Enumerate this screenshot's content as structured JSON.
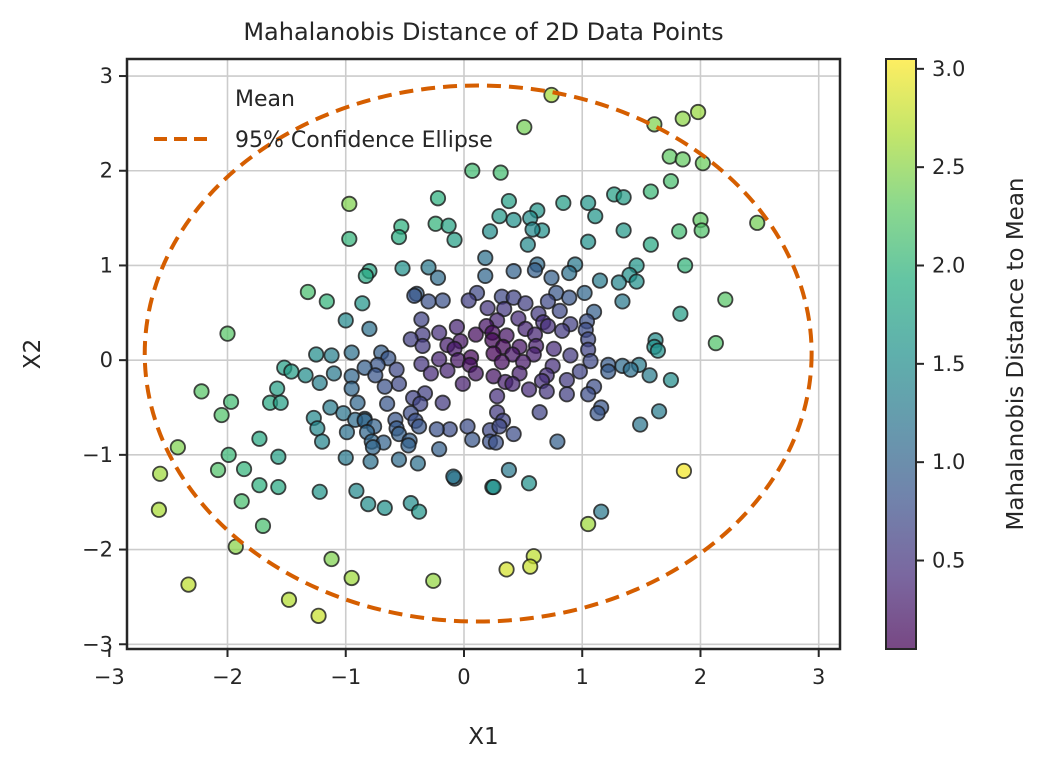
{
  "chart_data": {
    "type": "scatter",
    "title": "Mahalanobis Distance of 2D Data Points",
    "xlabel": "X1",
    "ylabel": "X2",
    "xlim": [
      -2.85,
      3.18
    ],
    "ylim": [
      -3.05,
      3.18
    ],
    "xticks": [
      -3,
      -2,
      -1,
      0,
      1,
      2,
      3
    ],
    "yticks": [
      -3,
      -2,
      -1,
      0,
      1,
      2,
      3
    ],
    "grid": true,
    "legend": {
      "position": "top-left",
      "entries": [
        {
          "label": "Mean",
          "style": "none"
        },
        {
          "label": "95% Confidence Ellipse",
          "style": "dashed-line",
          "color": "#d55e00"
        }
      ]
    },
    "ellipse": {
      "center": [
        0.12,
        0.07
      ],
      "semi_x": 2.82,
      "semi_y": 2.83,
      "color": "#d55e00",
      "style": "dashed"
    },
    "colorbar": {
      "label": "Mahalanobis Distance to Mean",
      "colormap": "viridis",
      "range": [
        0.05,
        3.05
      ],
      "ticks": [
        0.5,
        1.0,
        1.5,
        2.0,
        2.5,
        3.0
      ],
      "tick_labels": [
        "0.5",
        "1.0",
        "1.5",
        "2.0",
        "2.5",
        "3.0"
      ]
    },
    "points": [
      [
        0.74,
        2.8,
        2.62
      ],
      [
        1.98,
        2.62,
        2.57
      ],
      [
        1.85,
        2.55,
        2.52
      ],
      [
        1.61,
        2.49,
        2.45
      ],
      [
        0.51,
        2.46,
        2.4
      ],
      [
        1.74,
        2.15,
        2.3
      ],
      [
        1.85,
        2.12,
        2.32
      ],
      [
        2.02,
        2.08,
        2.35
      ],
      [
        0.07,
        2.0,
        2.1
      ],
      [
        0.31,
        1.98,
        2.12
      ],
      [
        1.75,
        1.89,
        2.15
      ],
      [
        1.58,
        1.78,
        2.05
      ],
      [
        -0.22,
        1.71,
        1.95
      ],
      [
        -0.97,
        1.65,
        2.45
      ],
      [
        1.27,
        1.75,
        1.75
      ],
      [
        1.35,
        1.72,
        1.7
      ],
      [
        0.38,
        1.68,
        1.75
      ],
      [
        0.84,
        1.66,
        1.7
      ],
      [
        1.05,
        1.66,
        1.6
      ],
      [
        0.62,
        1.58,
        1.6
      ],
      [
        0.3,
        1.52,
        1.65
      ],
      [
        0.42,
        1.48,
        1.55
      ],
      [
        0.56,
        1.5,
        1.5
      ],
      [
        1.11,
        1.52,
        1.6
      ],
      [
        2.0,
        1.48,
        2.3
      ],
      [
        -0.24,
        1.44,
        2.0
      ],
      [
        -0.53,
        1.41,
        1.95
      ],
      [
        -0.13,
        1.42,
        1.8
      ],
      [
        2.48,
        1.45,
        2.4
      ],
      [
        0.66,
        1.37,
        1.55
      ],
      [
        -0.55,
        1.3,
        1.9
      ],
      [
        -0.08,
        1.27,
        1.75
      ],
      [
        0.22,
        1.36,
        1.5
      ],
      [
        0.58,
        1.38,
        1.45
      ],
      [
        1.35,
        1.37,
        1.65
      ],
      [
        1.82,
        1.36,
        2.1
      ],
      [
        2.01,
        1.37,
        2.2
      ],
      [
        -0.97,
        1.28,
        2.0
      ],
      [
        0.54,
        1.22,
        1.45
      ],
      [
        1.05,
        1.25,
        1.55
      ],
      [
        1.58,
        1.22,
        1.85
      ],
      [
        0.18,
        1.08,
        1.15
      ],
      [
        0.62,
        1.01,
        1.1
      ],
      [
        0.94,
        1.01,
        1.25
      ],
      [
        -0.8,
        0.94,
        1.8
      ],
      [
        -0.52,
        0.97,
        1.55
      ],
      [
        -0.3,
        0.98,
        1.25
      ],
      [
        1.87,
        1.0,
        2.0
      ],
      [
        -0.83,
        0.89,
        1.85
      ],
      [
        0.18,
        0.89,
        1.05
      ],
      [
        0.42,
        0.94,
        1.0
      ],
      [
        0.6,
        0.95,
        0.95
      ],
      [
        0.89,
        0.92,
        1.15
      ],
      [
        1.46,
        1.0,
        1.6
      ],
      [
        1.4,
        0.9,
        1.55
      ],
      [
        -0.22,
        0.87,
        1.1
      ],
      [
        0.74,
        0.87,
        0.95
      ],
      [
        1.15,
        0.84,
        1.3
      ],
      [
        1.31,
        0.82,
        1.4
      ],
      [
        1.46,
        0.83,
        1.55
      ],
      [
        -1.32,
        0.72,
        2.15
      ],
      [
        0.11,
        0.71,
        0.7
      ],
      [
        0.32,
        0.67,
        0.7
      ],
      [
        0.78,
        0.71,
        0.85
      ],
      [
        1.02,
        0.71,
        1.05
      ],
      [
        -0.4,
        0.7,
        0.95
      ],
      [
        -0.18,
        0.63,
        0.8
      ],
      [
        -0.3,
        0.62,
        0.8
      ],
      [
        -0.42,
        0.68,
        0.85
      ],
      [
        0.04,
        0.63,
        0.6
      ],
      [
        0.42,
        0.66,
        0.65
      ],
      [
        0.52,
        0.6,
        0.6
      ],
      [
        0.71,
        0.62,
        0.7
      ],
      [
        0.89,
        0.66,
        0.85
      ],
      [
        1.34,
        0.62,
        1.25
      ],
      [
        -1.16,
        0.62,
        2.0
      ],
      [
        -0.86,
        0.6,
        1.6
      ],
      [
        2.21,
        0.64,
        2.25
      ],
      [
        0.2,
        0.55,
        0.5
      ],
      [
        0.34,
        0.54,
        0.52
      ],
      [
        0.63,
        0.49,
        0.55
      ],
      [
        0.81,
        0.52,
        0.7
      ],
      [
        1.1,
        0.51,
        0.95
      ],
      [
        1.83,
        0.49,
        1.7
      ],
      [
        -0.36,
        0.43,
        0.65
      ],
      [
        -1.0,
        0.42,
        1.45
      ],
      [
        0.28,
        0.42,
        0.35
      ],
      [
        0.46,
        0.44,
        0.4
      ],
      [
        0.67,
        0.4,
        0.45
      ],
      [
        0.9,
        0.38,
        0.6
      ],
      [
        1.04,
        0.41,
        0.8
      ],
      [
        -0.06,
        0.35,
        0.35
      ],
      [
        0.19,
        0.36,
        0.2
      ],
      [
        0.24,
        0.29,
        0.15
      ],
      [
        0.52,
        0.33,
        0.35
      ],
      [
        0.71,
        0.36,
        0.45
      ],
      [
        0.83,
        0.31,
        0.55
      ],
      [
        1.03,
        0.32,
        0.75
      ],
      [
        -0.8,
        0.33,
        1.15
      ],
      [
        -0.21,
        0.29,
        0.45
      ],
      [
        -0.35,
        0.27,
        0.55
      ],
      [
        0.1,
        0.27,
        0.15
      ],
      [
        0.36,
        0.26,
        0.2
      ],
      [
        0.6,
        0.27,
        0.35
      ],
      [
        1.05,
        0.22,
        0.7
      ],
      [
        -2.0,
        0.28,
        2.25
      ],
      [
        -0.45,
        0.22,
        0.6
      ],
      [
        0.24,
        0.21,
        0.1
      ],
      [
        -0.03,
        0.2,
        0.2
      ],
      [
        1.62,
        0.21,
        1.5
      ],
      [
        -0.35,
        0.15,
        0.55
      ],
      [
        -0.14,
        0.16,
        0.3
      ],
      [
        0.33,
        0.14,
        0.1
      ],
      [
        0.47,
        0.14,
        0.2
      ],
      [
        0.76,
        0.12,
        0.4
      ],
      [
        1.05,
        0.11,
        0.65
      ],
      [
        0.61,
        0.15,
        0.3
      ],
      [
        1.61,
        0.14,
        1.55
      ],
      [
        -0.08,
        0.12,
        0.25
      ],
      [
        0.25,
        0.07,
        0.05
      ],
      [
        0.59,
        0.06,
        0.3
      ],
      [
        -0.95,
        0.08,
        1.15
      ],
      [
        -0.7,
        0.08,
        0.95
      ],
      [
        0.41,
        0.06,
        0.2
      ],
      [
        0.9,
        0.05,
        0.55
      ],
      [
        1.64,
        0.1,
        1.55
      ],
      [
        2.13,
        0.18,
        2.2
      ],
      [
        -1.12,
        0.05,
        1.35
      ],
      [
        -0.64,
        0.02,
        0.85
      ],
      [
        -0.21,
        0.01,
        0.35
      ],
      [
        -0.05,
        0.0,
        0.2
      ],
      [
        0.06,
        0.03,
        0.1
      ],
      [
        -1.25,
        0.06,
        1.5
      ],
      [
        0.5,
        -0.02,
        0.25
      ],
      [
        1.07,
        -0.01,
        0.7
      ],
      [
        -0.73,
        -0.05,
        0.85
      ],
      [
        -0.36,
        -0.04,
        0.5
      ],
      [
        0.32,
        -0.02,
        0.15
      ],
      [
        0.75,
        -0.06,
        0.45
      ],
      [
        1.22,
        -0.05,
        0.9
      ],
      [
        1.48,
        -0.05,
        1.3
      ],
      [
        -1.52,
        -0.08,
        1.75
      ],
      [
        -1.46,
        -0.12,
        1.7
      ],
      [
        -0.84,
        -0.08,
        0.95
      ],
      [
        -0.57,
        -0.1,
        0.7
      ],
      [
        0.05,
        -0.05,
        0.15
      ],
      [
        1.34,
        -0.06,
        1.1
      ],
      [
        -0.28,
        -0.14,
        0.4
      ],
      [
        -0.14,
        -0.11,
        0.35
      ],
      [
        0.47,
        -0.14,
        0.3
      ],
      [
        0.7,
        -0.16,
        0.45
      ],
      [
        1.41,
        -0.1,
        1.15
      ],
      [
        -1.1,
        -0.14,
        1.25
      ],
      [
        -1.34,
        -0.16,
        1.5
      ],
      [
        -0.95,
        -0.17,
        1.05
      ],
      [
        -0.75,
        -0.16,
        0.85
      ],
      [
        0.1,
        -0.14,
        0.2
      ],
      [
        0.25,
        -0.17,
        0.2
      ],
      [
        0.98,
        -0.12,
        0.65
      ],
      [
        1.22,
        -0.12,
        0.9
      ],
      [
        -1.22,
        -0.24,
        1.35
      ],
      [
        0.35,
        -0.23,
        0.3
      ],
      [
        0.66,
        -0.22,
        0.45
      ],
      [
        0.87,
        -0.21,
        0.55
      ],
      [
        1.57,
        -0.16,
        1.3
      ],
      [
        1.75,
        -0.21,
        1.5
      ],
      [
        -0.55,
        -0.25,
        0.7
      ],
      [
        -0.01,
        -0.25,
        0.3
      ],
      [
        0.41,
        -0.25,
        0.35
      ],
      [
        -0.95,
        -0.3,
        1.05
      ],
      [
        -0.67,
        -0.28,
        0.8
      ],
      [
        1.1,
        -0.28,
        0.75
      ],
      [
        0.55,
        -0.31,
        0.4
      ],
      [
        -1.58,
        -0.3,
        1.75
      ],
      [
        -0.33,
        -0.35,
        0.6
      ],
      [
        0.7,
        -0.33,
        0.5
      ],
      [
        1.05,
        -0.36,
        0.75
      ],
      [
        -1.64,
        -0.45,
        1.85
      ],
      [
        -1.55,
        -0.45,
        1.75
      ],
      [
        -0.9,
        -0.45,
        1.05
      ],
      [
        -0.43,
        -0.4,
        0.65
      ],
      [
        0.28,
        -0.38,
        0.45
      ],
      [
        0.87,
        -0.36,
        0.6
      ],
      [
        -1.13,
        -0.5,
        1.3
      ],
      [
        -0.65,
        -0.46,
        0.85
      ],
      [
        -0.37,
        -0.46,
        0.65
      ],
      [
        -0.18,
        -0.45,
        0.55
      ],
      [
        1.16,
        -0.5,
        0.85
      ],
      [
        1.65,
        -0.54,
        1.3
      ],
      [
        -1.97,
        -0.44,
        2.1
      ],
      [
        -2.22,
        -0.33,
        2.25
      ],
      [
        -2.05,
        -0.58,
        2.2
      ],
      [
        -1.02,
        -0.56,
        1.2
      ],
      [
        -0.45,
        -0.56,
        0.75
      ],
      [
        0.28,
        -0.55,
        0.55
      ],
      [
        0.64,
        -0.55,
        0.65
      ],
      [
        1.13,
        -0.56,
        0.85
      ],
      [
        -0.84,
        -0.62,
        1.1
      ],
      [
        -0.58,
        -0.63,
        0.85
      ],
      [
        -1.27,
        -0.61,
        1.45
      ],
      [
        -0.41,
        -0.64,
        0.8
      ],
      [
        0.33,
        -0.64,
        0.65
      ],
      [
        -0.92,
        -0.63,
        1.1
      ],
      [
        -0.84,
        -0.64,
        1.05
      ],
      [
        1.49,
        -0.68,
        1.2
      ],
      [
        -1.24,
        -0.72,
        1.45
      ],
      [
        -0.76,
        -0.7,
        1.0
      ],
      [
        -0.57,
        -0.72,
        0.9
      ],
      [
        -0.38,
        -0.7,
        0.85
      ],
      [
        -0.12,
        -0.73,
        0.75
      ],
      [
        0.22,
        -0.74,
        0.7
      ],
      [
        0.3,
        -0.7,
        0.7
      ],
      [
        -0.23,
        -0.73,
        0.8
      ],
      [
        0.03,
        -0.7,
        0.75
      ],
      [
        -0.82,
        -0.76,
        1.05
      ],
      [
        -0.99,
        -0.76,
        1.15
      ],
      [
        -0.55,
        -0.78,
        0.95
      ],
      [
        0.42,
        -0.78,
        0.75
      ],
      [
        0.22,
        -0.86,
        0.8
      ],
      [
        0.27,
        -0.87,
        0.8
      ],
      [
        -0.78,
        -0.86,
        1.05
      ],
      [
        -0.46,
        -0.85,
        0.95
      ],
      [
        -0.68,
        -0.87,
        1.0
      ],
      [
        0.07,
        -0.84,
        0.85
      ],
      [
        0.79,
        -0.86,
        0.95
      ],
      [
        -1.73,
        -0.83,
        1.85
      ],
      [
        -1.2,
        -0.86,
        1.4
      ],
      [
        -0.77,
        -0.92,
        1.05
      ],
      [
        -0.47,
        -0.9,
        1.0
      ],
      [
        -0.21,
        -0.94,
        0.95
      ],
      [
        -2.42,
        -0.92,
        2.45
      ],
      [
        -1.0,
        -1.03,
        1.25
      ],
      [
        -0.55,
        -1.05,
        1.1
      ],
      [
        -0.39,
        -1.09,
        1.15
      ],
      [
        -0.79,
        -1.07,
        1.15
      ],
      [
        -0.08,
        -1.25,
        1.2
      ],
      [
        -0.09,
        -1.23,
        1.2
      ],
      [
        -1.57,
        -1.02,
        1.75
      ],
      [
        -1.99,
        -1.0,
        2.05
      ],
      [
        -2.08,
        -1.16,
        2.2
      ],
      [
        -1.86,
        -1.15,
        2.0
      ],
      [
        0.38,
        -1.16,
        1.25
      ],
      [
        0.24,
        -1.34,
        1.55
      ],
      [
        0.25,
        -1.34,
        1.55
      ],
      [
        0.55,
        -1.3,
        1.55
      ],
      [
        -2.57,
        -1.2,
        2.6
      ],
      [
        -1.73,
        -1.32,
        1.95
      ],
      [
        -1.57,
        -1.34,
        1.85
      ],
      [
        -1.22,
        -1.39,
        1.6
      ],
      [
        -0.91,
        -1.38,
        1.45
      ],
      [
        1.16,
        -1.6,
        1.25
      ],
      [
        -1.88,
        -1.49,
        2.15
      ],
      [
        -0.81,
        -1.52,
        1.5
      ],
      [
        -0.45,
        -1.51,
        1.5
      ],
      [
        -0.38,
        -1.6,
        1.6
      ],
      [
        -0.67,
        -1.56,
        1.55
      ],
      [
        -2.58,
        -1.58,
        2.65
      ],
      [
        -1.7,
        -1.75,
        2.15
      ],
      [
        1.05,
        -1.73,
        2.6
      ],
      [
        -1.93,
        -1.97,
        2.5
      ],
      [
        -1.12,
        -2.1,
        2.45
      ],
      [
        0.59,
        -2.07,
        2.75
      ],
      [
        0.56,
        -2.18,
        2.8
      ],
      [
        0.36,
        -2.21,
        2.85
      ],
      [
        1.86,
        -1.17,
        3.0
      ],
      [
        -0.95,
        -2.3,
        2.6
      ],
      [
        -2.33,
        -2.37,
        2.75
      ],
      [
        -0.26,
        -2.33,
        2.55
      ],
      [
        -1.48,
        -2.53,
        2.7
      ],
      [
        -1.23,
        -2.7,
        2.8
      ]
    ]
  }
}
